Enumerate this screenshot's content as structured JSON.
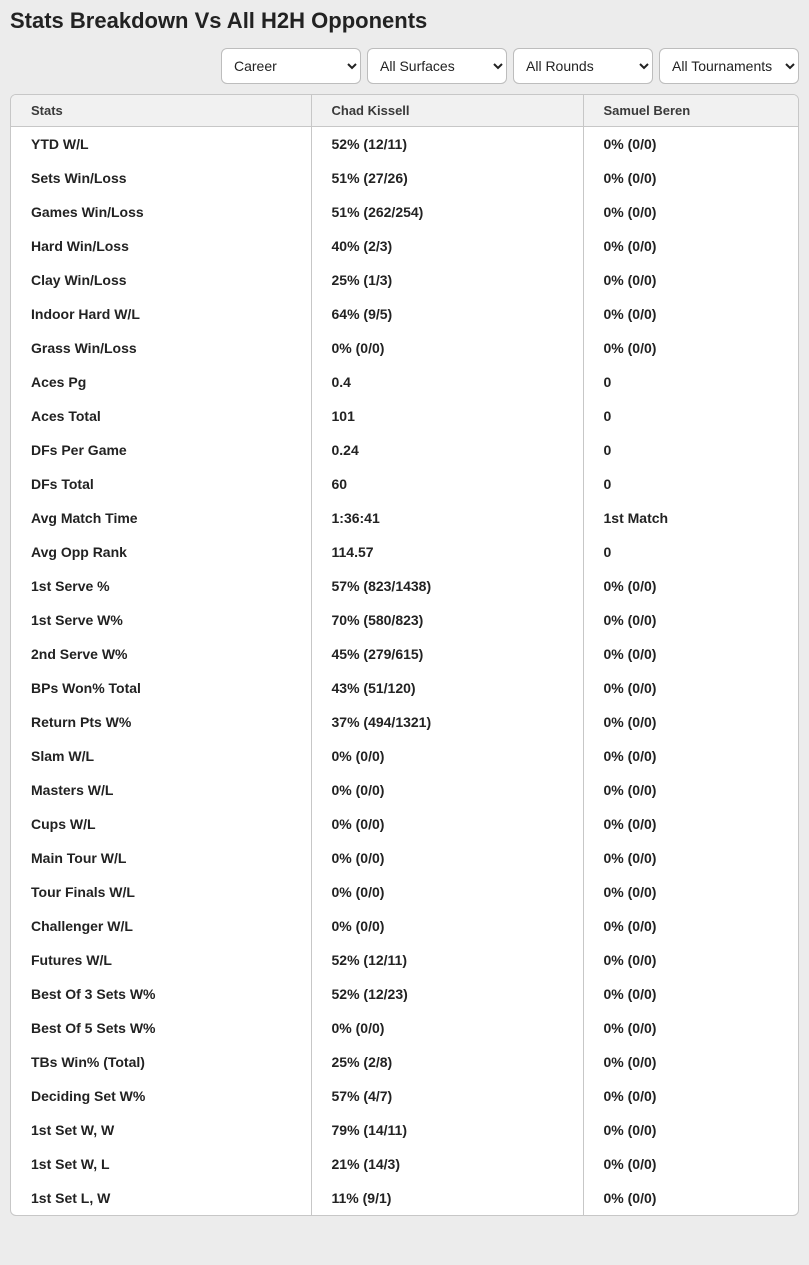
{
  "title": "Stats Breakdown Vs All H2H Opponents",
  "filters": {
    "time": {
      "selected": "Career",
      "options": [
        "Career"
      ]
    },
    "surface": {
      "selected": "All Surfaces",
      "options": [
        "All Surfaces"
      ]
    },
    "round": {
      "selected": "All Rounds",
      "options": [
        "All Rounds"
      ]
    },
    "tournament": {
      "selected": "All Tournaments",
      "options": [
        "All Tournaments"
      ]
    }
  },
  "columns": {
    "stats": "Stats",
    "player1": "Chad Kissell",
    "player2": "Samuel Beren"
  },
  "rows": [
    {
      "stat": "YTD W/L",
      "p1": "52% (12/11)",
      "p2": "0% (0/0)"
    },
    {
      "stat": "Sets Win/Loss",
      "p1": "51% (27/26)",
      "p2": "0% (0/0)"
    },
    {
      "stat": "Games Win/Loss",
      "p1": "51% (262/254)",
      "p2": "0% (0/0)"
    },
    {
      "stat": "Hard Win/Loss",
      "p1": "40% (2/3)",
      "p2": "0% (0/0)"
    },
    {
      "stat": "Clay Win/Loss",
      "p1": "25% (1/3)",
      "p2": "0% (0/0)"
    },
    {
      "stat": "Indoor Hard W/L",
      "p1": "64% (9/5)",
      "p2": "0% (0/0)"
    },
    {
      "stat": "Grass Win/Loss",
      "p1": "0% (0/0)",
      "p2": "0% (0/0)"
    },
    {
      "stat": "Aces Pg",
      "p1": "0.4",
      "p2": "0"
    },
    {
      "stat": "Aces Total",
      "p1": "101",
      "p2": "0"
    },
    {
      "stat": "DFs Per Game",
      "p1": "0.24",
      "p2": "0"
    },
    {
      "stat": "DFs Total",
      "p1": "60",
      "p2": "0"
    },
    {
      "stat": "Avg Match Time",
      "p1": "1:36:41",
      "p2": "1st Match"
    },
    {
      "stat": "Avg Opp Rank",
      "p1": "114.57",
      "p2": "0"
    },
    {
      "stat": "1st Serve %",
      "p1": "57% (823/1438)",
      "p2": "0% (0/0)"
    },
    {
      "stat": "1st Serve W%",
      "p1": "70% (580/823)",
      "p2": "0% (0/0)"
    },
    {
      "stat": "2nd Serve W%",
      "p1": "45% (279/615)",
      "p2": "0% (0/0)"
    },
    {
      "stat": "BPs Won% Total",
      "p1": "43% (51/120)",
      "p2": "0% (0/0)"
    },
    {
      "stat": "Return Pts W%",
      "p1": "37% (494/1321)",
      "p2": "0% (0/0)"
    },
    {
      "stat": "Slam W/L",
      "p1": "0% (0/0)",
      "p2": "0% (0/0)"
    },
    {
      "stat": "Masters W/L",
      "p1": "0% (0/0)",
      "p2": "0% (0/0)"
    },
    {
      "stat": "Cups W/L",
      "p1": "0% (0/0)",
      "p2": "0% (0/0)"
    },
    {
      "stat": "Main Tour W/L",
      "p1": "0% (0/0)",
      "p2": "0% (0/0)"
    },
    {
      "stat": "Tour Finals W/L",
      "p1": "0% (0/0)",
      "p2": "0% (0/0)"
    },
    {
      "stat": "Challenger W/L",
      "p1": "0% (0/0)",
      "p2": "0% (0/0)"
    },
    {
      "stat": "Futures W/L",
      "p1": "52% (12/11)",
      "p2": "0% (0/0)"
    },
    {
      "stat": "Best Of 3 Sets W%",
      "p1": "52% (12/23)",
      "p2": "0% (0/0)"
    },
    {
      "stat": "Best Of 5 Sets W%",
      "p1": "0% (0/0)",
      "p2": "0% (0/0)"
    },
    {
      "stat": "TBs Win% (Total)",
      "p1": "25% (2/8)",
      "p2": "0% (0/0)"
    },
    {
      "stat": "Deciding Set W%",
      "p1": "57% (4/7)",
      "p2": "0% (0/0)"
    },
    {
      "stat": "1st Set W, W",
      "p1": "79% (14/11)",
      "p2": "0% (0/0)"
    },
    {
      "stat": "1st Set W, L",
      "p1": "21% (14/3)",
      "p2": "0% (0/0)"
    },
    {
      "stat": "1st Set L, W",
      "p1": "11% (9/1)",
      "p2": "0% (0/0)"
    }
  ],
  "style": {
    "background_color": "#ececec",
    "table_border_color": "#c7c7c7",
    "header_bg": "#f1f1f1",
    "text_color": "#222222",
    "title_fontsize": 22,
    "header_fontsize": 13,
    "cell_fontsize": 14,
    "select_border_color": "#bdbdbd",
    "select_bg": "#ffffff"
  }
}
